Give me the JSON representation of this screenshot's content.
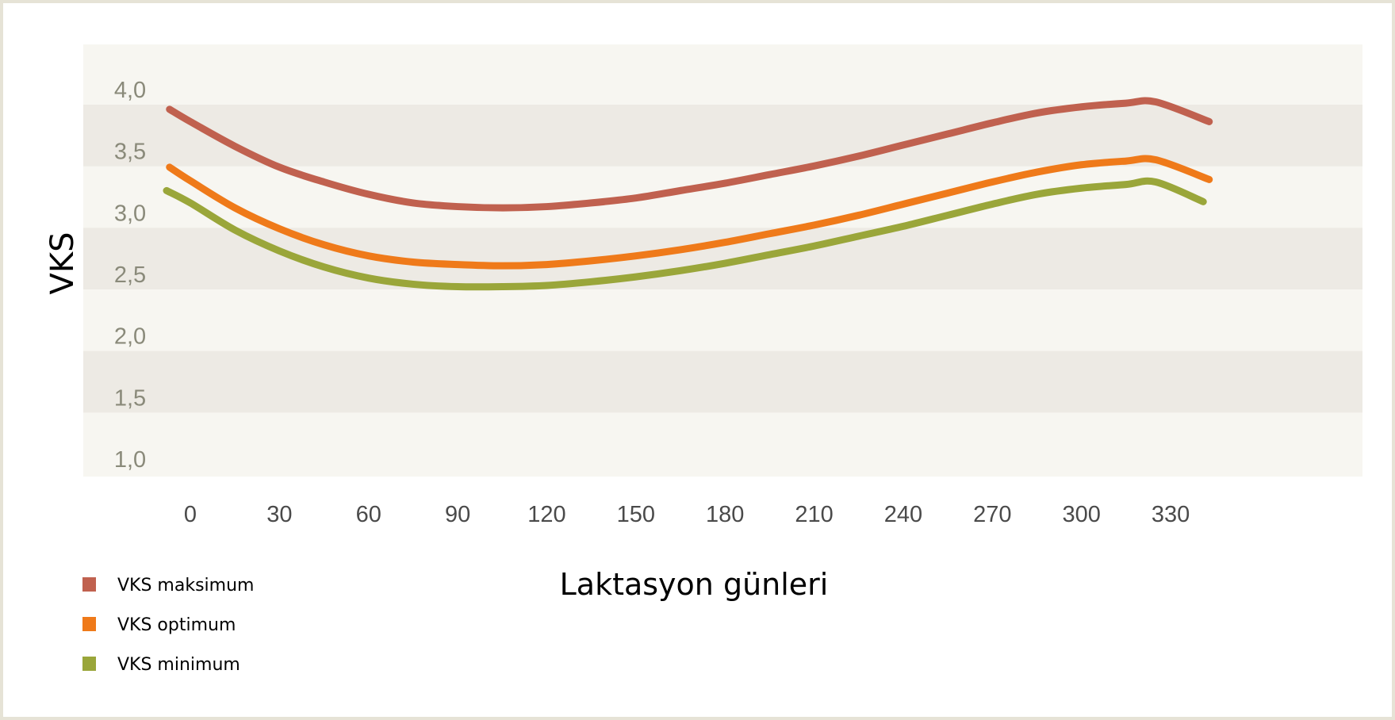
{
  "chart_data": {
    "type": "line",
    "xlabel": "Laktasyon günleri",
    "ylabel": "VKS",
    "x_ticks": [
      "0",
      "30",
      "60",
      "90",
      "120",
      "150",
      "180",
      "210",
      "240",
      "270",
      "300",
      "330"
    ],
    "y_ticks": [
      "1,0",
      "1,5",
      "2,0",
      "2,5",
      "3,0",
      "3,5",
      "4,0"
    ],
    "xlim": [
      0,
      340
    ],
    "ylim": [
      1.0,
      4.0
    ],
    "grid": "alternating horizontal bands",
    "legend_position": "bottom-left",
    "series": [
      {
        "name": "VKS maksimum",
        "color": "#c0614f",
        "x": [
          -7,
          0,
          15,
          30,
          45,
          60,
          75,
          90,
          105,
          120,
          135,
          150,
          165,
          180,
          195,
          210,
          225,
          240,
          255,
          270,
          285,
          300,
          315,
          325,
          343
        ],
        "y": [
          3.84,
          3.74,
          3.54,
          3.37,
          3.25,
          3.15,
          3.08,
          3.05,
          3.04,
          3.05,
          3.08,
          3.12,
          3.18,
          3.24,
          3.31,
          3.38,
          3.46,
          3.55,
          3.64,
          3.73,
          3.81,
          3.86,
          3.89,
          3.9,
          3.74
        ]
      },
      {
        "name": "VKS optimum",
        "color": "#ef7a1a",
        "x": [
          -7,
          0,
          15,
          30,
          45,
          60,
          75,
          90,
          105,
          120,
          135,
          150,
          165,
          180,
          195,
          210,
          225,
          240,
          255,
          270,
          285,
          300,
          315,
          325,
          343
        ],
        "y": [
          3.37,
          3.26,
          3.04,
          2.87,
          2.74,
          2.65,
          2.6,
          2.58,
          2.57,
          2.58,
          2.61,
          2.65,
          2.7,
          2.76,
          2.83,
          2.9,
          2.98,
          3.07,
          3.16,
          3.25,
          3.33,
          3.39,
          3.42,
          3.43,
          3.27
        ]
      },
      {
        "name": "VKS minimum",
        "color": "#9aa63a",
        "x": [
          -8,
          0,
          15,
          30,
          45,
          60,
          75,
          90,
          105,
          120,
          135,
          150,
          165,
          180,
          195,
          210,
          225,
          240,
          255,
          270,
          285,
          300,
          315,
          325,
          341
        ],
        "y": [
          3.18,
          3.08,
          2.86,
          2.69,
          2.56,
          2.47,
          2.42,
          2.4,
          2.4,
          2.41,
          2.44,
          2.48,
          2.53,
          2.59,
          2.66,
          2.73,
          2.81,
          2.89,
          2.98,
          3.07,
          3.15,
          3.2,
          3.23,
          3.25,
          3.09
        ]
      }
    ]
  }
}
